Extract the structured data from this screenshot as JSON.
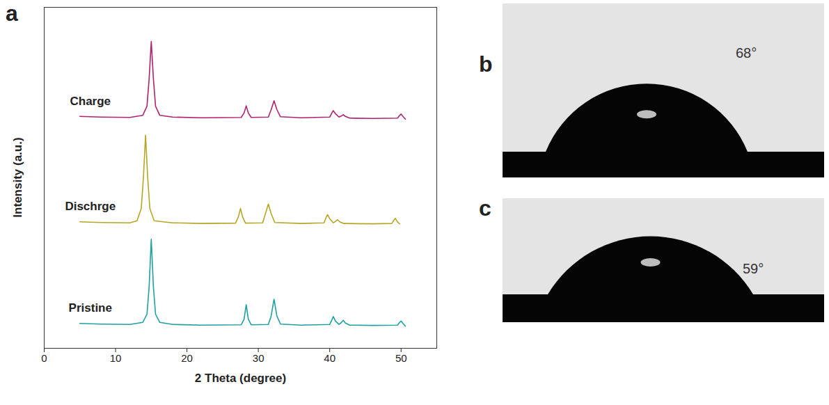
{
  "chart_data": {
    "type": "line",
    "panel_label": "a",
    "x_label": "2 Theta (degree)",
    "y_label": "Intensity (a.u.)",
    "xlim": [
      0,
      55
    ],
    "xticks": [
      0,
      10,
      20,
      30,
      40,
      50
    ],
    "ylim": [
      0,
      100
    ],
    "tick_labels": "x",
    "grid": false,
    "series": [
      {
        "name": "Charge",
        "color": "#b0226e",
        "x": [
          5,
          8,
          12,
          13.8,
          14.4,
          14.7,
          15.0,
          15.3,
          15.6,
          16.2,
          18,
          22,
          27.6,
          28.0,
          28.3,
          28.6,
          29.0,
          31.4,
          31.8,
          32.2,
          32.6,
          33.1,
          36,
          40.0,
          40.3,
          40.5,
          40.8,
          41.3,
          41.6,
          41.9,
          42.2,
          42.8,
          46,
          49.5,
          49.8,
          50.0,
          50.3,
          50.6
        ],
        "values": [
          68.0,
          67.8,
          67.7,
          68.3,
          71,
          79,
          90,
          79,
          71,
          68.3,
          67.8,
          67.6,
          67.7,
          69,
          71.1,
          69,
          67.7,
          67.8,
          70,
          72.6,
          70,
          67.9,
          67.6,
          67.8,
          69,
          69.7,
          68.8,
          67.8,
          68.1,
          68.5,
          68.0,
          67.5,
          67.4,
          67.5,
          68.3,
          68.7,
          67.9,
          67.2
        ]
      },
      {
        "name": "Dischrge",
        "color": "#b5a626",
        "x": [
          5,
          8,
          12,
          13.0,
          13.6,
          13.9,
          14.2,
          14.5,
          14.8,
          15.4,
          18,
          22,
          26.8,
          27.2,
          27.5,
          27.8,
          28.2,
          30.6,
          31.0,
          31.4,
          31.8,
          32.3,
          36,
          39.2,
          39.5,
          39.7,
          40.0,
          40.5,
          40.8,
          41.1,
          41.4,
          42.0,
          46,
          48.7,
          49.0,
          49.2,
          49.5,
          49.8
        ],
        "values": [
          37.1,
          36.9,
          36.8,
          37.4,
          41,
          50,
          62.5,
          50,
          41,
          37.4,
          36.8,
          36.6,
          36.7,
          38.5,
          41.0,
          38.5,
          36.7,
          36.8,
          39.5,
          42.3,
          39.5,
          36.9,
          36.6,
          36.8,
          38.4,
          39.2,
          38.0,
          36.8,
          37.2,
          37.7,
          37.1,
          36.6,
          36.5,
          36.6,
          37.6,
          38.1,
          37.0,
          36.5
        ]
      },
      {
        "name": "Pristine",
        "color": "#20a0a0",
        "x": [
          5,
          8,
          12,
          13.8,
          14.4,
          14.7,
          15.0,
          15.3,
          15.6,
          16.2,
          18,
          22,
          27.6,
          28.0,
          28.3,
          28.6,
          29.0,
          31.4,
          31.8,
          32.2,
          32.6,
          33.1,
          36,
          40.0,
          40.3,
          40.5,
          40.8,
          41.3,
          41.6,
          41.9,
          42.2,
          42.8,
          46,
          49.5,
          49.8,
          50.0,
          50.3,
          50.6
        ],
        "values": [
          7.3,
          7.1,
          7.0,
          7.6,
          10,
          18,
          32,
          18,
          10,
          7.6,
          7.0,
          6.8,
          6.9,
          8.5,
          12.8,
          8.5,
          6.9,
          7.0,
          9.5,
          14.4,
          9.5,
          7.1,
          6.8,
          7.0,
          8.3,
          9.3,
          8.0,
          7.0,
          7.5,
          8.2,
          7.4,
          6.8,
          6.7,
          6.8,
          7.6,
          8.0,
          7.2,
          6.5
        ]
      }
    ]
  },
  "images": [
    {
      "panel_label": "b",
      "contact_angle": 68,
      "label": "68°"
    },
    {
      "panel_label": "c",
      "contact_angle": 59,
      "label": "59°"
    }
  ]
}
